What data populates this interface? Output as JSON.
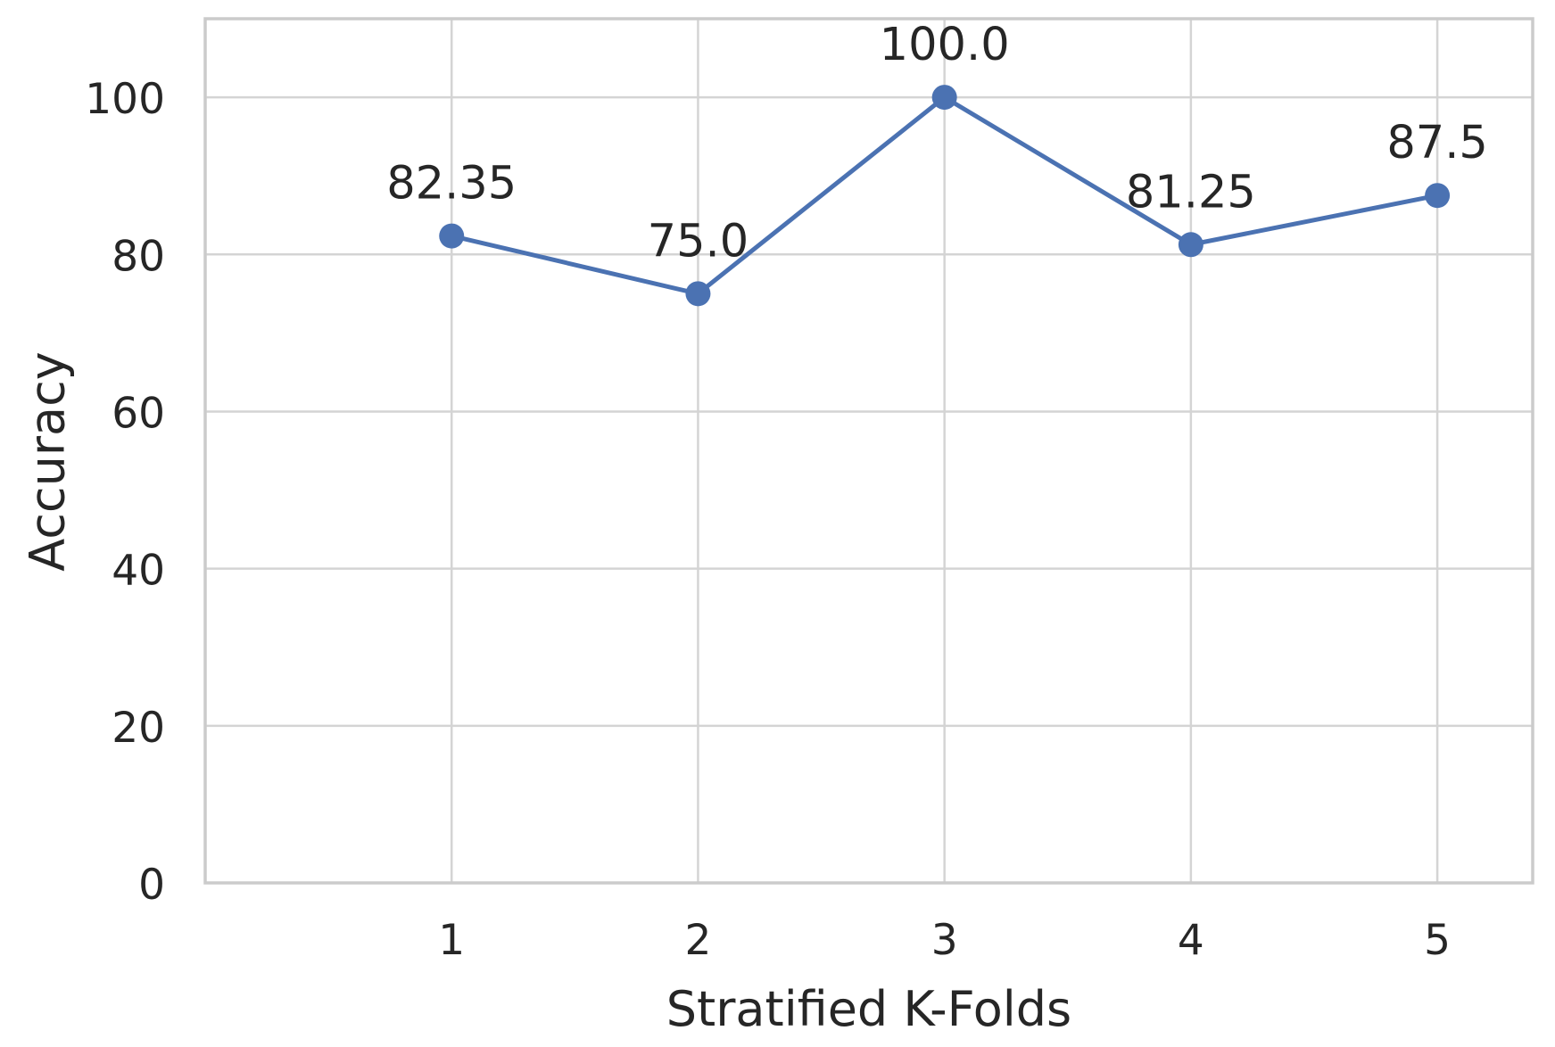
{
  "chart_data": {
    "type": "line",
    "x": [
      1,
      2,
      3,
      4,
      5
    ],
    "values": [
      82.35,
      75.0,
      100.0,
      81.25,
      87.5
    ],
    "point_labels": [
      "82.35",
      "75.0",
      "100.0",
      "81.25",
      "87.5"
    ],
    "title": "",
    "xlabel": "Stratified K-Folds",
    "ylabel": "Accuracy",
    "xticks": [
      1,
      2,
      3,
      4,
      5
    ],
    "xtick_labels": [
      "1",
      "2",
      "3",
      "4",
      "5"
    ],
    "yticks": [
      0,
      20,
      40,
      60,
      80,
      100
    ],
    "ytick_labels": [
      "0",
      "20",
      "40",
      "60",
      "80",
      "100"
    ],
    "xlim": [
      0,
      5.387
    ],
    "ylim": [
      0,
      110
    ],
    "grid": true,
    "legend": "none",
    "colors": {
      "line": "#4b72b2",
      "marker": "#4b72b2",
      "grid": "#d4d4d4",
      "border": "#cbcbcb",
      "text": "#262626",
      "background": "#ffffff"
    }
  }
}
